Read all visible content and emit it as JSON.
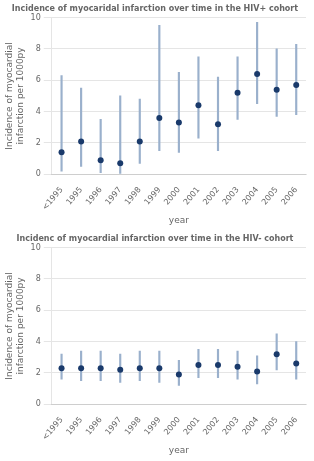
{
  "chart_data": [
    {
      "type": "scatter",
      "title": "Incidence of myocaridal infarction over time in the HIV+ cohort",
      "x_label": "year",
      "y_label": "Incidence of myocardial\ninfarction per 1000py",
      "categories": [
        "<1995",
        "1995",
        "1996",
        "1997",
        "1998",
        "1999",
        "2000",
        "2001",
        "2002",
        "2003",
        "2004",
        "2005",
        "2006"
      ],
      "values": [
        1.4,
        2.1,
        0.9,
        0.7,
        2.1,
        3.6,
        3.3,
        4.4,
        3.2,
        5.2,
        6.4,
        5.4,
        5.7
      ],
      "errors": {
        "lower": [
          0.2,
          0.5,
          0.1,
          0.05,
          0.7,
          1.5,
          1.4,
          2.3,
          1.5,
          3.5,
          4.5,
          3.7,
          3.8
        ],
        "upper": [
          6.3,
          5.5,
          3.5,
          5.0,
          4.8,
          9.5,
          6.5,
          7.5,
          6.2,
          7.5,
          9.7,
          8.0,
          8.3
        ],
        "color": "#9ab0cc"
      },
      "color": "#1a3a6b",
      "marker": "circle",
      "ylim": [
        0,
        10
      ],
      "yticks": [
        0,
        2,
        4,
        6,
        8,
        10
      ],
      "grid": true
    },
    {
      "type": "scatter",
      "title": "Incidenc of myocardial infarction over time in the HIV- cohort",
      "x_label": "year",
      "y_label": "Incidence of myocardial\ninfarction per 1000py",
      "categories": [
        "<1995",
        "1995",
        "1996",
        "1997",
        "1998",
        "1999",
        "2000",
        "2001",
        "2002",
        "2003",
        "2004",
        "2005",
        "2006"
      ],
      "values": [
        2.3,
        2.3,
        2.3,
        2.2,
        2.3,
        2.3,
        1.9,
        2.5,
        2.5,
        2.4,
        2.1,
        3.2,
        2.6
      ],
      "errors": {
        "lower": [
          1.6,
          1.5,
          1.5,
          1.4,
          1.5,
          1.4,
          1.2,
          1.7,
          1.7,
          1.6,
          1.3,
          2.2,
          1.6
        ],
        "upper": [
          3.2,
          3.4,
          3.4,
          3.2,
          3.4,
          3.4,
          2.8,
          3.5,
          3.5,
          3.4,
          3.1,
          4.5,
          4.0
        ],
        "color": "#9ab0cc"
      },
      "color": "#1a3a6b",
      "marker": "circle",
      "ylim": [
        0,
        10
      ],
      "yticks": [
        0,
        2,
        4,
        6,
        8,
        10
      ],
      "grid": true
    }
  ]
}
